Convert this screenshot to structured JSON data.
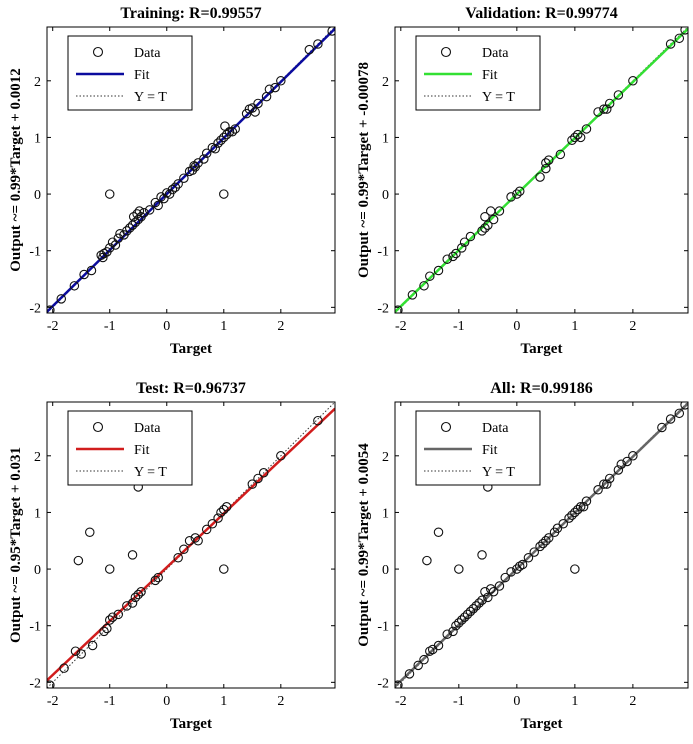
{
  "chart_data": [
    {
      "type": "scatter",
      "title": "Training: R=0.99557",
      "xlabel": "Target",
      "ylabel": "Output ~= 0.99*Target + 0.0012",
      "xlim": [
        -2.1,
        2.95
      ],
      "ylim": [
        -2.1,
        2.95
      ],
      "xticks": [
        -2,
        -1,
        0,
        1,
        2
      ],
      "yticks": [
        -2,
        -1,
        0,
        1,
        2
      ],
      "legend": [
        "Data",
        "Fit",
        "Y = T"
      ],
      "legend_position": "top-left",
      "fit": {
        "slope": 0.99,
        "intercept": 0.0012,
        "color": "#0b0b9e"
      },
      "points": [
        [
          -2.05,
          -2.05
        ],
        [
          -1.85,
          -1.85
        ],
        [
          -1.62,
          -1.62
        ],
        [
          -1.45,
          -1.42
        ],
        [
          -1.32,
          -1.35
        ],
        [
          -1.15,
          -1.08
        ],
        [
          -1.12,
          -1.12
        ],
        [
          -1.1,
          -1.05
        ],
        [
          -1.05,
          -1.02
        ],
        [
          -1.0,
          -0.95
        ],
        [
          -0.95,
          -0.85
        ],
        [
          -0.9,
          -0.9
        ],
        [
          -0.85,
          -0.78
        ],
        [
          -0.82,
          -0.7
        ],
        [
          -0.75,
          -0.72
        ],
        [
          -0.7,
          -0.65
        ],
        [
          -0.65,
          -0.6
        ],
        [
          -0.6,
          -0.55
        ],
        [
          -0.58,
          -0.4
        ],
        [
          -0.55,
          -0.5
        ],
        [
          -0.52,
          -0.35
        ],
        [
          -0.5,
          -0.45
        ],
        [
          -0.48,
          -0.3
        ],
        [
          -0.45,
          -0.4
        ],
        [
          -0.4,
          -0.33
        ],
        [
          -0.3,
          -0.28
        ],
        [
          -0.2,
          -0.15
        ],
        [
          -0.15,
          -0.2
        ],
        [
          -0.1,
          -0.05
        ],
        [
          -0.05,
          -0.08
        ],
        [
          0.0,
          0.02
        ],
        [
          0.05,
          0.0
        ],
        [
          0.1,
          0.08
        ],
        [
          0.15,
          0.12
        ],
        [
          0.2,
          0.18
        ],
        [
          0.3,
          0.28
        ],
        [
          0.4,
          0.4
        ],
        [
          0.45,
          0.42
        ],
        [
          0.48,
          0.5
        ],
        [
          0.5,
          0.48
        ],
        [
          0.55,
          0.55
        ],
        [
          0.65,
          0.62
        ],
        [
          0.7,
          0.72
        ],
        [
          0.8,
          0.82
        ],
        [
          0.85,
          0.8
        ],
        [
          0.9,
          0.9
        ],
        [
          0.95,
          0.95
        ],
        [
          1.0,
          1.0
        ],
        [
          1.02,
          1.2
        ],
        [
          1.05,
          1.05
        ],
        [
          1.1,
          1.1
        ],
        [
          1.15,
          1.1
        ],
        [
          1.2,
          1.15
        ],
        [
          1.4,
          1.42
        ],
        [
          1.45,
          1.5
        ],
        [
          1.5,
          1.52
        ],
        [
          1.55,
          1.45
        ],
        [
          1.6,
          1.6
        ],
        [
          1.75,
          1.72
        ],
        [
          1.8,
          1.85
        ],
        [
          1.9,
          1.88
        ],
        [
          2.0,
          2.0
        ],
        [
          2.5,
          2.55
        ],
        [
          2.65,
          2.65
        ],
        [
          2.9,
          2.88
        ],
        [
          -1.0,
          0.0
        ],
        [
          1.0,
          0.0
        ]
      ]
    },
    {
      "type": "scatter",
      "title": "Validation: R=0.99774",
      "xlabel": "Target",
      "ylabel": "Output ~= 0.99*Target + -0.00078",
      "xlim": [
        -2.1,
        2.95
      ],
      "ylim": [
        -2.1,
        2.95
      ],
      "xticks": [
        -2,
        -1,
        0,
        1,
        2
      ],
      "yticks": [
        -2,
        -1,
        0,
        1,
        2
      ],
      "legend": [
        "Data",
        "Fit",
        "Y = T"
      ],
      "legend_position": "top-left",
      "fit": {
        "slope": 0.99,
        "intercept": -0.00078,
        "color": "#33e033"
      },
      "points": [
        [
          -2.05,
          -2.05
        ],
        [
          -1.8,
          -1.78
        ],
        [
          -1.6,
          -1.62
        ],
        [
          -1.5,
          -1.45
        ],
        [
          -1.35,
          -1.35
        ],
        [
          -1.2,
          -1.15
        ],
        [
          -1.1,
          -1.1
        ],
        [
          -1.05,
          -1.05
        ],
        [
          -0.95,
          -0.95
        ],
        [
          -0.9,
          -0.85
        ],
        [
          -0.8,
          -0.75
        ],
        [
          -0.6,
          -0.65
        ],
        [
          -0.55,
          -0.6
        ],
        [
          -0.55,
          -0.4
        ],
        [
          -0.5,
          -0.55
        ],
        [
          -0.45,
          -0.3
        ],
        [
          -0.4,
          -0.45
        ],
        [
          -0.3,
          -0.3
        ],
        [
          -0.1,
          -0.05
        ],
        [
          0.0,
          0.0
        ],
        [
          0.05,
          0.05
        ],
        [
          0.4,
          0.3
        ],
        [
          0.5,
          0.45
        ],
        [
          0.5,
          0.55
        ],
        [
          0.55,
          0.6
        ],
        [
          0.75,
          0.7
        ],
        [
          0.95,
          0.95
        ],
        [
          1.0,
          1.0
        ],
        [
          1.05,
          1.05
        ],
        [
          1.1,
          1.0
        ],
        [
          1.2,
          1.15
        ],
        [
          1.4,
          1.45
        ],
        [
          1.5,
          1.5
        ],
        [
          1.55,
          1.5
        ],
        [
          1.6,
          1.6
        ],
        [
          1.75,
          1.75
        ],
        [
          2.0,
          2.0
        ],
        [
          2.65,
          2.65
        ],
        [
          2.8,
          2.75
        ],
        [
          2.9,
          2.9
        ]
      ]
    },
    {
      "type": "scatter",
      "title": "Test: R=0.96737",
      "xlabel": "Target",
      "ylabel": "Output ~= 0.95*Target + 0.031",
      "xlim": [
        -2.1,
        2.95
      ],
      "ylim": [
        -2.1,
        2.95
      ],
      "xticks": [
        -2,
        -1,
        0,
        1,
        2
      ],
      "yticks": [
        -2,
        -1,
        0,
        1,
        2
      ],
      "legend": [
        "Data",
        "Fit",
        "Y = T"
      ],
      "legend_position": "top-left",
      "fit": {
        "slope": 0.95,
        "intercept": 0.031,
        "color": "#d11d1d"
      },
      "points": [
        [
          -2.05,
          -2.05
        ],
        [
          -1.8,
          -1.75
        ],
        [
          -1.6,
          -1.45
        ],
        [
          -1.5,
          -1.5
        ],
        [
          -1.3,
          -1.35
        ],
        [
          -1.1,
          -1.1
        ],
        [
          -1.05,
          -1.05
        ],
        [
          -1.0,
          -0.9
        ],
        [
          -0.95,
          -0.85
        ],
        [
          -0.85,
          -0.8
        ],
        [
          -0.7,
          -0.65
        ],
        [
          -0.6,
          -0.6
        ],
        [
          -0.55,
          -0.5
        ],
        [
          -0.5,
          -0.45
        ],
        [
          -0.45,
          -0.4
        ],
        [
          -0.2,
          -0.2
        ],
        [
          -0.15,
          -0.15
        ],
        [
          0.2,
          0.2
        ],
        [
          0.3,
          0.35
        ],
        [
          0.4,
          0.5
        ],
        [
          0.5,
          0.55
        ],
        [
          0.55,
          0.5
        ],
        [
          0.7,
          0.7
        ],
        [
          0.8,
          0.8
        ],
        [
          0.9,
          0.9
        ],
        [
          0.95,
          1.0
        ],
        [
          1.0,
          1.05
        ],
        [
          1.05,
          1.1
        ],
        [
          1.5,
          1.5
        ],
        [
          1.6,
          1.6
        ],
        [
          1.7,
          1.7
        ],
        [
          2.0,
          2.0
        ],
        [
          2.65,
          2.62
        ],
        [
          -1.55,
          0.15
        ],
        [
          -1.35,
          0.65
        ],
        [
          -1.0,
          0.0
        ],
        [
          -0.6,
          0.25
        ],
        [
          1.0,
          0.0
        ],
        [
          -0.5,
          1.45
        ]
      ]
    },
    {
      "type": "scatter",
      "title": "All: R=0.99186",
      "xlabel": "Target",
      "ylabel": "Output ~= 0.99*Target + 0.0054",
      "xlim": [
        -2.1,
        2.95
      ],
      "ylim": [
        -2.1,
        2.95
      ],
      "xticks": [
        -2,
        -1,
        0,
        1,
        2
      ],
      "yticks": [
        -2,
        -1,
        0,
        1,
        2
      ],
      "legend": [
        "Data",
        "Fit",
        "Y = T"
      ],
      "legend_position": "top-left",
      "fit": {
        "slope": 0.99,
        "intercept": 0.0054,
        "color": "#666666"
      },
      "points": [
        [
          -2.05,
          -2.05
        ],
        [
          -1.85,
          -1.85
        ],
        [
          -1.7,
          -1.7
        ],
        [
          -1.6,
          -1.6
        ],
        [
          -1.5,
          -1.45
        ],
        [
          -1.45,
          -1.42
        ],
        [
          -1.35,
          -1.35
        ],
        [
          -1.2,
          -1.15
        ],
        [
          -1.1,
          -1.1
        ],
        [
          -1.05,
          -1.0
        ],
        [
          -1.0,
          -0.95
        ],
        [
          -0.95,
          -0.9
        ],
        [
          -0.9,
          -0.85
        ],
        [
          -0.85,
          -0.8
        ],
        [
          -0.8,
          -0.75
        ],
        [
          -0.75,
          -0.7
        ],
        [
          -0.7,
          -0.65
        ],
        [
          -0.65,
          -0.6
        ],
        [
          -0.6,
          -0.55
        ],
        [
          -0.55,
          -0.4
        ],
        [
          -0.5,
          -0.5
        ],
        [
          -0.45,
          -0.35
        ],
        [
          -0.4,
          -0.4
        ],
        [
          -0.3,
          -0.3
        ],
        [
          -0.2,
          -0.15
        ],
        [
          -0.1,
          -0.05
        ],
        [
          0.0,
          0.0
        ],
        [
          0.05,
          0.05
        ],
        [
          0.1,
          0.08
        ],
        [
          0.2,
          0.2
        ],
        [
          0.3,
          0.3
        ],
        [
          0.4,
          0.4
        ],
        [
          0.45,
          0.45
        ],
        [
          0.5,
          0.5
        ],
        [
          0.55,
          0.55
        ],
        [
          0.65,
          0.65
        ],
        [
          0.7,
          0.72
        ],
        [
          0.8,
          0.8
        ],
        [
          0.9,
          0.9
        ],
        [
          0.95,
          0.95
        ],
        [
          1.0,
          1.0
        ],
        [
          1.05,
          1.05
        ],
        [
          1.1,
          1.1
        ],
        [
          1.15,
          1.1
        ],
        [
          1.2,
          1.2
        ],
        [
          1.4,
          1.4
        ],
        [
          1.5,
          1.5
        ],
        [
          1.55,
          1.5
        ],
        [
          1.6,
          1.6
        ],
        [
          1.75,
          1.75
        ],
        [
          1.8,
          1.85
        ],
        [
          1.9,
          1.9
        ],
        [
          2.0,
          2.0
        ],
        [
          2.5,
          2.5
        ],
        [
          2.65,
          2.65
        ],
        [
          2.8,
          2.75
        ],
        [
          2.9,
          2.9
        ],
        [
          -1.55,
          0.15
        ],
        [
          -1.35,
          0.65
        ],
        [
          -1.0,
          0.0
        ],
        [
          -0.6,
          0.25
        ],
        [
          1.0,
          0.0
        ],
        [
          -0.5,
          1.45
        ]
      ]
    }
  ]
}
